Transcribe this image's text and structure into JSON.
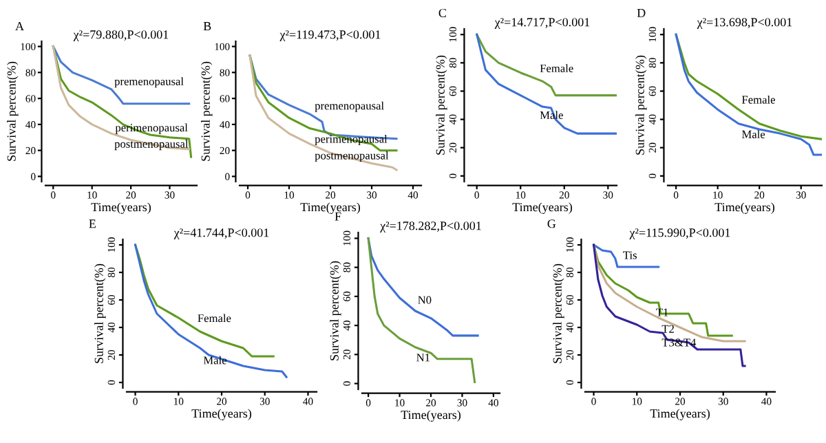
{
  "chart_data": [
    {
      "type": "line",
      "annotations": [
        "A"
      ],
      "title": "χ²=79.880,P<0.001",
      "xlabel": "Time(years)",
      "ylabel": "Survival percent(%)",
      "xlim": [
        -2,
        37
      ],
      "xticks": [
        0,
        10,
        20,
        30
      ],
      "ylim": [
        -4,
        104
      ],
      "yticks": [
        0,
        20,
        40,
        60,
        80,
        100
      ],
      "series": [
        {
          "name": "premenopausal",
          "color": "#4a7bd0",
          "x": [
            0,
            2,
            5,
            10,
            15,
            17,
            18,
            35
          ],
          "values": [
            100,
            88,
            80,
            74,
            67,
            60,
            56,
            56
          ]
        },
        {
          "name": "perimenopausal",
          "color": "#5e9a1e",
          "x": [
            0,
            2,
            4,
            7,
            10,
            15,
            18,
            22,
            25,
            30,
            35,
            35.5
          ],
          "values": [
            100,
            75,
            66,
            61,
            57,
            47,
            40,
            35,
            32,
            30,
            29,
            15
          ]
        },
        {
          "name": "postmenopausal",
          "color": "#cdb89c",
          "x": [
            0,
            2,
            4,
            7,
            10,
            15,
            20,
            25,
            30,
            35
          ],
          "values": [
            100,
            68,
            55,
            46,
            40,
            33,
            28,
            25,
            22,
            21
          ]
        }
      ]
    },
    {
      "type": "line",
      "annotations": [
        "B"
      ],
      "title": "χ²=119.473,P<0.001",
      "xlabel": "Time(years)",
      "ylabel": "Survival percent(%)",
      "xlim": [
        -2,
        42
      ],
      "xticks": [
        0,
        10,
        20,
        30,
        40
      ],
      "ylim": [
        -4,
        104
      ],
      "yticks": [
        0,
        20,
        40,
        60,
        80,
        100
      ],
      "series": [
        {
          "name": "premenopausal",
          "color": "#4a7bd0",
          "x": [
            0.5,
            2,
            5,
            10,
            15,
            18,
            18.5,
            20,
            30,
            36
          ],
          "values": [
            93,
            75,
            63,
            55,
            48,
            42,
            35,
            32,
            30,
            29
          ]
        },
        {
          "name": "perimenopausal",
          "color": "#5e9a1e",
          "x": [
            0.5,
            2,
            5,
            10,
            15,
            20,
            25,
            30,
            32,
            36
          ],
          "values": [
            93,
            72,
            57,
            45,
            37,
            33,
            28,
            25,
            20,
            20
          ]
        },
        {
          "name": "postmenopausal",
          "color": "#cdb89c",
          "x": [
            0.5,
            2,
            5,
            10,
            15,
            20,
            25,
            30,
            35,
            36
          ],
          "values": [
            93,
            62,
            45,
            33,
            25,
            18,
            14,
            10,
            7,
            5
          ]
        }
      ]
    },
    {
      "type": "line",
      "annotations": [
        "C"
      ],
      "title": "χ²=14.717,P<0.001",
      "xlabel": "Time(years)",
      "ylabel": "Survival percent(%)",
      "xlim": [
        -2,
        32
      ],
      "xticks": [
        0,
        10,
        20,
        30
      ],
      "ylim": [
        -4,
        104
      ],
      "yticks": [
        0,
        20,
        40,
        60,
        80,
        100
      ],
      "series": [
        {
          "name": "Female",
          "color": "#6a9e3a",
          "x": [
            0,
            2,
            5,
            10,
            15,
            17,
            18,
            32
          ],
          "values": [
            100,
            88,
            80,
            73,
            67,
            63,
            57,
            57
          ]
        },
        {
          "name": "Male",
          "color": "#3d6fd6",
          "x": [
            0,
            2,
            5,
            10,
            15,
            17,
            18,
            20,
            23,
            32
          ],
          "values": [
            100,
            75,
            65,
            57,
            49,
            48,
            40,
            34,
            30,
            30
          ]
        }
      ]
    },
    {
      "type": "line",
      "annotations": [
        "D"
      ],
      "title": "χ²=13.698,P<0.001",
      "xlabel": "Time(years)",
      "ylabel": "Survival percent(%)",
      "xlim": [
        -2,
        35
      ],
      "xticks": [
        0,
        10,
        20,
        30
      ],
      "ylim": [
        -4,
        104
      ],
      "yticks": [
        0,
        20,
        40,
        60,
        80,
        100
      ],
      "series": [
        {
          "name": "Female",
          "color": "#5e9a1e",
          "x": [
            0,
            2,
            3,
            5,
            10,
            15,
            20,
            25,
            30,
            35
          ],
          "values": [
            100,
            80,
            72,
            67,
            58,
            47,
            37,
            32,
            28,
            26
          ]
        },
        {
          "name": "Male",
          "color": "#3d6fd6",
          "x": [
            0,
            2,
            3,
            5,
            10,
            15,
            20,
            25,
            30,
            32,
            33,
            35
          ],
          "values": [
            100,
            75,
            67,
            59,
            47,
            37,
            33,
            30,
            26,
            22,
            15,
            15
          ]
        }
      ]
    },
    {
      "type": "line",
      "annotations": [
        "E"
      ],
      "title": "χ²=41.744,P<0.001",
      "xlabel": "Time(years)",
      "ylabel": "Survival percent(%)",
      "xlim": [
        -2,
        42
      ],
      "xticks": [
        0,
        10,
        20,
        30,
        40
      ],
      "ylim": [
        -4,
        104
      ],
      "yticks": [
        0,
        20,
        40,
        60,
        80,
        100
      ],
      "series": [
        {
          "name": "Female",
          "color": "#5e9a1e",
          "x": [
            0,
            1,
            2,
            3,
            5,
            10,
            15,
            20,
            25,
            27,
            32
          ],
          "values": [
            100,
            90,
            78,
            68,
            56,
            47,
            37,
            30,
            25,
            19,
            19
          ]
        },
        {
          "name": "Male",
          "color": "#3d6fd6",
          "x": [
            0,
            2,
            3,
            5,
            10,
            15,
            17,
            20,
            25,
            30,
            34,
            35
          ],
          "values": [
            100,
            74,
            64,
            50,
            35,
            25,
            20,
            17,
            12,
            9,
            8,
            4
          ]
        }
      ]
    },
    {
      "type": "line",
      "annotations": [
        "F"
      ],
      "title": "χ²=178.282,P<0.001",
      "xlabel": "Time(years)",
      "ylabel": "Survival percent(%)",
      "xlim": [
        -2,
        42
      ],
      "xticks": [
        0,
        10,
        20,
        30,
        40
      ],
      "ylim": [
        -4,
        104
      ],
      "yticks": [
        0,
        20,
        40,
        60,
        80,
        100
      ],
      "series": [
        {
          "name": "N0",
          "color": "#3d6fd6",
          "x": [
            0,
            1,
            3,
            5,
            10,
            15,
            20,
            25,
            27,
            35
          ],
          "values": [
            100,
            88,
            78,
            72,
            59,
            50,
            45,
            37,
            33,
            33
          ]
        },
        {
          "name": "N1",
          "color": "#6a9e3a",
          "x": [
            0,
            1,
            2,
            3,
            5,
            10,
            15,
            20,
            22,
            33,
            34
          ],
          "values": [
            100,
            80,
            60,
            48,
            40,
            31,
            25,
            21,
            17,
            17,
            1
          ]
        }
      ]
    },
    {
      "type": "line",
      "annotations": [
        "G"
      ],
      "title": "χ²=115.990,P<0.001",
      "xlabel": "Time(years)",
      "ylabel": "Survival percent(%)",
      "xlim": [
        -2,
        42
      ],
      "xticks": [
        0,
        10,
        20,
        30,
        40
      ],
      "ylim": [
        -4,
        104
      ],
      "yticks": [
        0,
        20,
        40,
        60,
        80,
        100
      ],
      "series": [
        {
          "name": "Tis",
          "color": "#3d6fd6",
          "x": [
            0,
            2,
            4,
            5,
            5.5,
            15
          ],
          "values": [
            100,
            96,
            95,
            90,
            84,
            84
          ]
        },
        {
          "name": "T1",
          "color": "#5e9a1e",
          "x": [
            0,
            1,
            3,
            5,
            8,
            10,
            13,
            15,
            15.5,
            22,
            23,
            26,
            26.5,
            32
          ],
          "values": [
            100,
            88,
            78,
            72,
            67,
            62,
            58,
            58,
            50,
            50,
            43,
            43,
            34,
            34
          ]
        },
        {
          "name": "T2",
          "color": "#c8ae8e",
          "x": [
            0,
            1,
            3,
            5,
            10,
            15,
            20,
            25,
            30,
            35
          ],
          "values": [
            100,
            85,
            72,
            65,
            55,
            47,
            40,
            33,
            30,
            30
          ]
        },
        {
          "name": "T3&T4",
          "color": "#34239a",
          "x": [
            0,
            1,
            2,
            3,
            5,
            10,
            13,
            16,
            17,
            20,
            22,
            24,
            30,
            34,
            34.5,
            35
          ],
          "values": [
            100,
            75,
            63,
            55,
            48,
            42,
            37,
            36,
            31,
            30,
            29,
            24,
            24,
            24,
            12,
            12
          ]
        }
      ]
    }
  ]
}
